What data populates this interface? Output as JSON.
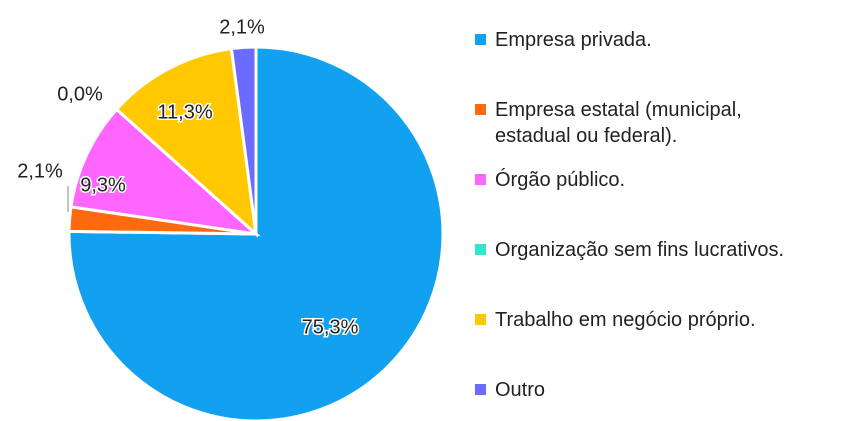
{
  "chart_data": {
    "type": "pie",
    "categories": [
      "Empresa privada.",
      "Empresa estatal (municipal, estadual ou federal).",
      "Órgão público.",
      "Organização sem fins lucrativos.",
      "Trabalho em negócio próprio.",
      "Outro"
    ],
    "values": [
      75.3,
      2.1,
      9.3,
      0.0,
      11.3,
      2.1
    ],
    "value_labels": [
      "75,3%",
      "2,1%",
      "9,3%",
      "0,0%",
      "11,3%",
      "2,1%"
    ],
    "colors": [
      "#12a0f0",
      "#ff6a10",
      "#ff66ff",
      "#30e8c8",
      "#ffc800",
      "#6b6bff"
    ],
    "legend": "right"
  }
}
